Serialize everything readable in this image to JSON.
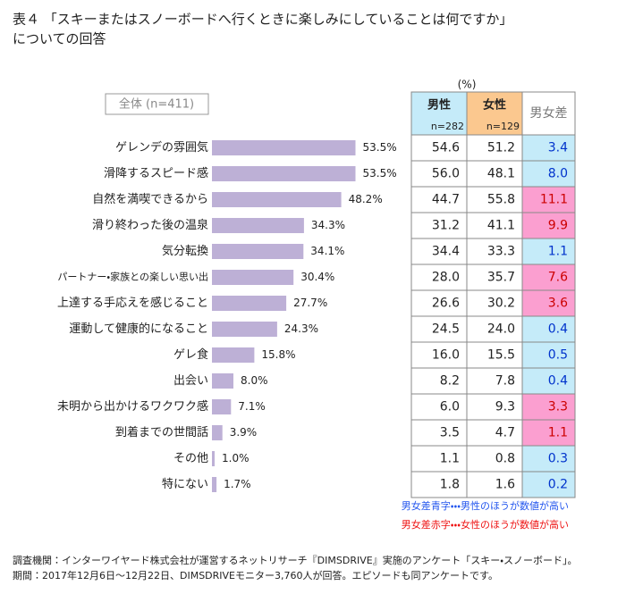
{
  "chart_data": {
    "type": "bar",
    "title": "表４ 「スキーまたはスノーボードへ行くときに楽しみにしていることは何ですか」",
    "subtitle": "についての回答",
    "group_label": "全体 (n=411)",
    "color": "#bdb0d6",
    "categories": [
      "ゲレンデの雰囲気",
      "滑降するスピード感",
      "自然を満喫できるから",
      "滑り終わった後の温泉",
      "気分転換",
      "パートナー・家族との楽しい思い出",
      "上達する手応えを感じること",
      "運動して健康的になること",
      "ゲレ食",
      "出会い",
      "未明から出かけるワクワク感",
      "到着までの世間話",
      "その他",
      "特にない"
    ],
    "values": [
      53.5,
      53.5,
      48.2,
      34.3,
      34.1,
      30.4,
      27.7,
      24.3,
      15.8,
      8.0,
      7.1,
      3.9,
      1.0,
      1.7
    ],
    "value_labels": [
      "53.5%",
      "53.5%",
      "48.2%",
      "34.3%",
      "34.1%",
      "30.4%",
      "27.7%",
      "24.3%",
      "15.8%",
      "8.0%",
      "7.1%",
      "3.9%",
      "1.0%",
      "1.7%"
    ],
    "table": {
      "unit": "(%)",
      "columns": [
        {
          "name": "男性",
          "n": "n=282",
          "fill": "#c5ebf9"
        },
        {
          "name": "女性",
          "n": "n=129",
          "fill": "#fbc88f"
        },
        {
          "name": "男女差",
          "fill": "#ffffff"
        }
      ],
      "rows": [
        [
          "54.6",
          "51.2",
          "3.4"
        ],
        [
          "56.0",
          "48.1",
          "8.0"
        ],
        [
          "44.7",
          "55.8",
          "11.1"
        ],
        [
          "31.2",
          "41.1",
          "9.9"
        ],
        [
          "34.4",
          "33.3",
          "1.1"
        ],
        [
          "28.0",
          "35.7",
          "7.6"
        ],
        [
          "26.6",
          "30.2",
          "3.6"
        ],
        [
          "24.5",
          "24.0",
          "0.4"
        ],
        [
          "16.0",
          "15.5",
          "0.5"
        ],
        [
          "8.2",
          "7.8",
          "0.4"
        ],
        [
          "6.0",
          "9.3",
          "3.3"
        ],
        [
          "3.5",
          "4.7",
          "1.1"
        ],
        [
          "1.1",
          "0.8",
          "0.3"
        ],
        [
          "1.8",
          "1.6",
          "0.2"
        ]
      ],
      "diff_text_colors": [
        "#0033cc",
        "#0033cc",
        "#cc0000",
        "#cc0000",
        "#0033cc",
        "#cc0000",
        "#cc0000",
        "#0033cc",
        "#0033cc",
        "#0033cc",
        "#cc0000",
        "#cc0000",
        "#0033cc",
        "#0033cc"
      ],
      "diff_fill_colors": [
        "#c5ebf9",
        "#c5ebf9",
        "#fb9fd0",
        "#fb9fd0",
        "#c5ebf9",
        "#fb9fd0",
        "#fb9fd0",
        "#c5ebf9",
        "#c5ebf9",
        "#c5ebf9",
        "#fb9fd0",
        "#fb9fd0",
        "#c5ebf9",
        "#c5ebf9"
      ]
    },
    "notes": [
      {
        "text": "男女差青字・・・男性のほうが数値が高い",
        "color": "#2255ee"
      },
      {
        "text": "男女差赤字・・・女性のほうが数値が高い",
        "color": "#ee1111"
      }
    ],
    "footer": [
      "調査機関：インターワイヤード株式会社が運営するネットリサーチ『DIMSDRIVE』実施のアンケート「スキー・スノーボード」。",
      "期間：2017年12月6日～12月22日、DIMSDRIVEモニター3,760人が回答。エピソードも同アンケートです。"
    ]
  }
}
